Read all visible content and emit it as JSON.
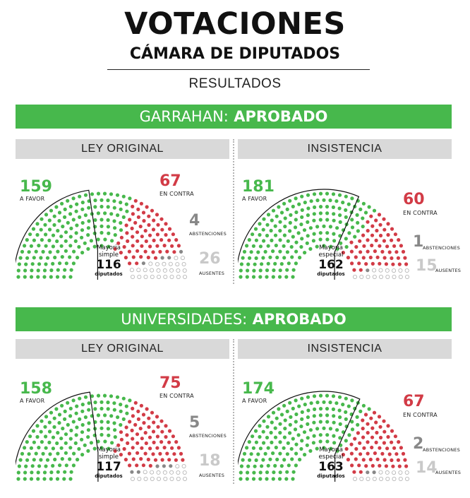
{
  "header": {
    "title": "VOTACIONES",
    "subtitle": "CÁMARA DE DIPUTADOS",
    "results_label": "RESULTADOS"
  },
  "colors": {
    "favor": "#47b84c",
    "contra": "#d23b46",
    "abstencion": "#888888",
    "ausente": "#b0b0b0",
    "band": "#47b84c"
  },
  "labels": {
    "favor": "A FAVOR",
    "contra": "EN CONTRA",
    "abstenciones": "ABSTENCIONES",
    "ausentes": "AUSENTES",
    "diputados": "diputados",
    "ley_original": "LEY ORIGINAL",
    "insistencia": "INSISTENCIA"
  },
  "sections": [
    {
      "name": "GARRAHAN:",
      "status": "APROBADO"
    },
    {
      "name": "UNIVERSIDADES:",
      "status": "APROBADO"
    }
  ],
  "chart_data": [
    {
      "type": "parliament",
      "section": "GARRAHAN",
      "panel": "LEY ORIGINAL",
      "favor": 159,
      "contra": 67,
      "abstenciones": 4,
      "ausentes": 26,
      "majority_label": "Mayoria simple",
      "majority": 116
    },
    {
      "type": "parliament",
      "section": "GARRAHAN",
      "panel": "INSISTENCIA",
      "favor": 181,
      "contra": 60,
      "abstenciones": 1,
      "ausentes": 15,
      "majority_label": "Mayoria especial",
      "majority": 162
    },
    {
      "type": "parliament",
      "section": "UNIVERSIDADES",
      "panel": "LEY ORIGINAL",
      "favor": 158,
      "contra": 75,
      "abstenciones": 5,
      "ausentes": 18,
      "majority_label": "Mayoria simple",
      "majority": 117
    },
    {
      "type": "parliament",
      "section": "UNIVERSIDADES",
      "panel": "INSISTENCIA",
      "favor": 174,
      "contra": 67,
      "abstenciones": 2,
      "ausentes": 14,
      "majority_label": "Mayoria especial",
      "majority": 163
    }
  ]
}
